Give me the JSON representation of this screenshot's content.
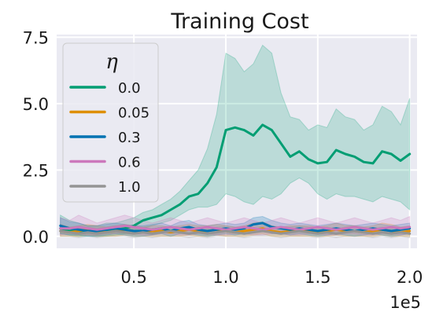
{
  "chart_data": {
    "type": "line",
    "title": "Training Cost",
    "xlabel": "",
    "ylabel": "",
    "x_offset_label": "1e5",
    "xlim": [
      0.08,
      2.04
    ],
    "ylim": [
      -0.45,
      7.6
    ],
    "xticks": [
      0.5,
      1.0,
      1.5,
      2.0
    ],
    "xtick_labels": [
      "0.5",
      "1.0",
      "1.5",
      "2.0"
    ],
    "yticks": [
      0.0,
      2.5,
      5.0,
      7.5
    ],
    "ytick_labels": [
      "0.0",
      "2.5",
      "5.0",
      "7.5"
    ],
    "grid": true,
    "legend_title": "η",
    "legend_position": "upper-left",
    "x": [
      0.1,
      0.15,
      0.2,
      0.25,
      0.3,
      0.35,
      0.4,
      0.45,
      0.5,
      0.55,
      0.6,
      0.65,
      0.7,
      0.75,
      0.8,
      0.85,
      0.9,
      0.95,
      1.0,
      1.05,
      1.1,
      1.15,
      1.2,
      1.25,
      1.3,
      1.35,
      1.4,
      1.45,
      1.5,
      1.55,
      1.6,
      1.65,
      1.7,
      1.75,
      1.8,
      1.85,
      1.9,
      1.95,
      2.0
    ],
    "series": [
      {
        "name": "0.0",
        "color": "#029e73",
        "values": [
          0.3,
          0.2,
          0.2,
          0.15,
          0.2,
          0.2,
          0.25,
          0.3,
          0.4,
          0.6,
          0.7,
          0.8,
          1.0,
          1.2,
          1.5,
          1.6,
          2.0,
          2.6,
          4.0,
          4.1,
          4.0,
          3.8,
          4.2,
          4.0,
          3.5,
          3.0,
          3.2,
          2.9,
          2.75,
          2.8,
          3.25,
          3.1,
          3.0,
          2.8,
          2.75,
          3.2,
          3.1,
          2.85,
          3.1
        ],
        "upper": [
          0.8,
          0.6,
          0.5,
          0.4,
          0.4,
          0.5,
          0.5,
          0.6,
          0.7,
          0.9,
          1.0,
          1.2,
          1.4,
          1.7,
          2.1,
          2.5,
          3.3,
          4.6,
          6.9,
          6.7,
          6.2,
          6.5,
          7.2,
          6.9,
          5.4,
          4.5,
          4.4,
          4.0,
          4.2,
          4.1,
          4.8,
          4.5,
          4.4,
          4.0,
          4.2,
          4.9,
          4.7,
          4.2,
          5.2
        ],
        "lower": [
          0.1,
          0.05,
          0.0,
          0.0,
          0.0,
          0.0,
          0.05,
          0.1,
          0.1,
          0.3,
          0.4,
          0.5,
          0.6,
          0.8,
          1.0,
          1.1,
          1.1,
          1.2,
          1.6,
          1.5,
          1.3,
          1.2,
          1.5,
          1.4,
          1.6,
          2.0,
          2.2,
          2.0,
          1.6,
          1.4,
          1.6,
          1.5,
          1.5,
          1.4,
          1.3,
          1.5,
          1.4,
          1.3,
          1.0
        ]
      },
      {
        "name": "0.05",
        "color": "#de8f05",
        "values": [
          0.2,
          0.15,
          0.2,
          0.25,
          0.2,
          0.15,
          0.2,
          0.25,
          0.2,
          0.15,
          0.2,
          0.2,
          0.15,
          0.2,
          0.25,
          0.2,
          0.2,
          0.25,
          0.2,
          0.15,
          0.2,
          0.25,
          0.3,
          0.2,
          0.15,
          0.2,
          0.2,
          0.2,
          0.15,
          0.2,
          0.25,
          0.2,
          0.2,
          0.15,
          0.2,
          0.25,
          0.2,
          0.15,
          0.2
        ],
        "upper": [
          0.45,
          0.35,
          0.4,
          0.45,
          0.4,
          0.35,
          0.4,
          0.45,
          0.4,
          0.35,
          0.4,
          0.4,
          0.35,
          0.4,
          0.45,
          0.4,
          0.4,
          0.45,
          0.4,
          0.35,
          0.4,
          0.5,
          0.55,
          0.4,
          0.35,
          0.4,
          0.4,
          0.4,
          0.35,
          0.4,
          0.5,
          0.4,
          0.4,
          0.35,
          0.4,
          0.5,
          0.45,
          0.35,
          0.4
        ],
        "lower": [
          0.0,
          0.0,
          0.0,
          0.05,
          0.0,
          0.0,
          0.0,
          0.05,
          0.0,
          0.0,
          0.0,
          0.0,
          0.0,
          0.0,
          0.05,
          0.0,
          0.0,
          0.05,
          0.0,
          0.0,
          0.0,
          0.05,
          0.1,
          0.0,
          0.0,
          0.0,
          0.0,
          0.0,
          0.0,
          0.0,
          0.05,
          0.0,
          0.0,
          0.0,
          0.0,
          0.05,
          0.0,
          0.0,
          0.0
        ]
      },
      {
        "name": "0.3",
        "color": "#0173b2",
        "values": [
          0.4,
          0.3,
          0.25,
          0.2,
          0.2,
          0.25,
          0.3,
          0.25,
          0.2,
          0.2,
          0.25,
          0.3,
          0.2,
          0.3,
          0.35,
          0.25,
          0.2,
          0.25,
          0.3,
          0.25,
          0.3,
          0.45,
          0.5,
          0.35,
          0.3,
          0.25,
          0.3,
          0.25,
          0.2,
          0.25,
          0.3,
          0.25,
          0.2,
          0.25,
          0.3,
          0.25,
          0.2,
          0.25,
          0.3
        ],
        "upper": [
          0.7,
          0.55,
          0.5,
          0.4,
          0.4,
          0.45,
          0.5,
          0.45,
          0.4,
          0.4,
          0.45,
          0.5,
          0.4,
          0.55,
          0.6,
          0.45,
          0.4,
          0.45,
          0.5,
          0.45,
          0.5,
          0.7,
          0.75,
          0.6,
          0.5,
          0.45,
          0.5,
          0.45,
          0.4,
          0.45,
          0.5,
          0.45,
          0.4,
          0.45,
          0.5,
          0.45,
          0.4,
          0.45,
          0.5
        ],
        "lower": [
          0.1,
          0.05,
          0.05,
          0.0,
          0.0,
          0.05,
          0.1,
          0.05,
          0.0,
          0.0,
          0.05,
          0.1,
          0.0,
          0.1,
          0.1,
          0.05,
          0.0,
          0.05,
          0.1,
          0.05,
          0.1,
          0.2,
          0.25,
          0.1,
          0.1,
          0.05,
          0.1,
          0.05,
          0.0,
          0.05,
          0.1,
          0.05,
          0.0,
          0.05,
          0.1,
          0.05,
          0.0,
          0.05,
          0.1
        ]
      },
      {
        "name": "0.6",
        "color": "#cc78bc",
        "values": [
          0.3,
          0.3,
          0.35,
          0.3,
          0.25,
          0.3,
          0.35,
          0.4,
          0.35,
          0.3,
          0.25,
          0.3,
          0.35,
          0.3,
          0.25,
          0.3,
          0.35,
          0.3,
          0.25,
          0.3,
          0.35,
          0.3,
          0.25,
          0.3,
          0.35,
          0.3,
          0.25,
          0.3,
          0.35,
          0.3,
          0.25,
          0.3,
          0.35,
          0.3,
          0.25,
          0.3,
          0.35,
          0.3,
          0.35
        ],
        "upper": [
          0.7,
          0.6,
          0.8,
          0.65,
          0.5,
          0.6,
          0.7,
          0.8,
          0.7,
          0.6,
          0.5,
          0.6,
          0.7,
          0.6,
          0.5,
          0.6,
          0.7,
          0.6,
          0.5,
          0.6,
          0.7,
          0.6,
          0.5,
          0.6,
          0.7,
          0.6,
          0.5,
          0.6,
          0.7,
          0.6,
          0.5,
          0.6,
          0.7,
          0.6,
          0.5,
          0.6,
          0.7,
          0.6,
          0.75
        ],
        "lower": [
          0.05,
          0.1,
          0.1,
          0.05,
          0.05,
          0.1,
          0.1,
          0.15,
          0.1,
          0.05,
          0.05,
          0.1,
          0.1,
          0.05,
          0.05,
          0.1,
          0.1,
          0.05,
          0.05,
          0.1,
          0.1,
          0.05,
          0.05,
          0.1,
          0.1,
          0.05,
          0.05,
          0.1,
          0.1,
          0.05,
          0.05,
          0.1,
          0.1,
          0.05,
          0.05,
          0.1,
          0.1,
          0.05,
          0.1
        ]
      },
      {
        "name": "1.0",
        "color": "#949494",
        "values": [
          0.2,
          0.15,
          0.1,
          0.15,
          0.1,
          0.15,
          0.2,
          0.15,
          0.1,
          0.15,
          0.1,
          0.15,
          0.2,
          0.15,
          0.1,
          0.15,
          0.1,
          0.15,
          0.2,
          0.15,
          0.1,
          0.15,
          0.2,
          0.15,
          0.1,
          0.15,
          0.2,
          0.15,
          0.1,
          0.15,
          0.1,
          0.15,
          0.2,
          0.15,
          0.1,
          0.15,
          0.1,
          0.15,
          0.1
        ],
        "upper": [
          0.45,
          0.35,
          0.3,
          0.35,
          0.3,
          0.35,
          0.4,
          0.35,
          0.3,
          0.35,
          0.3,
          0.35,
          0.4,
          0.35,
          0.3,
          0.35,
          0.3,
          0.35,
          0.4,
          0.35,
          0.3,
          0.35,
          0.4,
          0.35,
          0.3,
          0.35,
          0.4,
          0.35,
          0.3,
          0.35,
          0.3,
          0.35,
          0.4,
          0.35,
          0.3,
          0.35,
          0.3,
          0.35,
          0.3
        ],
        "lower": [
          0.0,
          0.0,
          -0.05,
          0.0,
          -0.05,
          0.0,
          0.0,
          0.0,
          -0.05,
          0.0,
          -0.05,
          0.0,
          0.0,
          0.0,
          -0.05,
          0.0,
          -0.05,
          0.0,
          0.0,
          0.0,
          -0.05,
          0.0,
          0.0,
          0.0,
          -0.05,
          0.0,
          0.0,
          0.0,
          -0.05,
          0.0,
          -0.05,
          0.0,
          0.0,
          0.0,
          -0.05,
          0.0,
          -0.05,
          0.0,
          -0.05
        ]
      }
    ]
  }
}
